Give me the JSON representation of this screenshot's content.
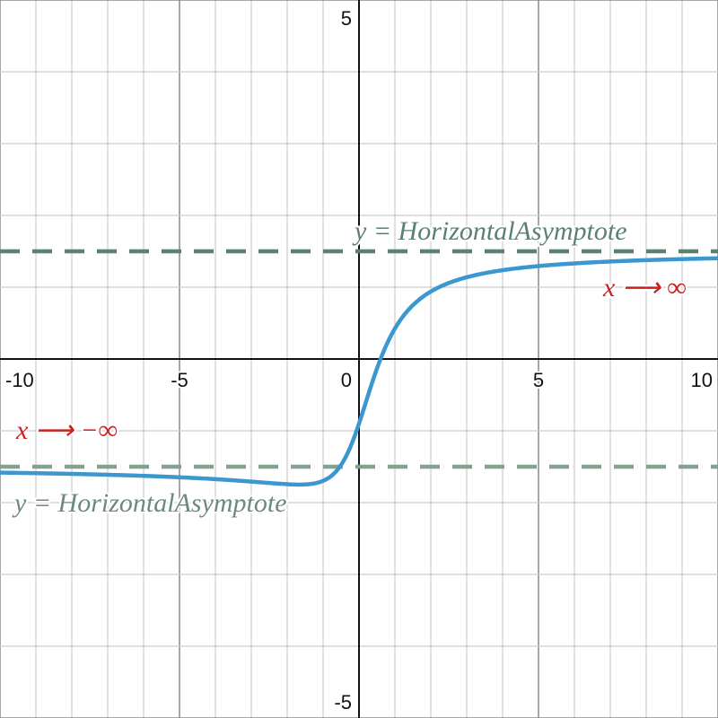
{
  "chart_data": {
    "type": "line",
    "xlim": [
      -10,
      10
    ],
    "ylim": [
      -5,
      5
    ],
    "grid": true,
    "x_tick_labels": [
      "-10",
      "-5",
      "0",
      "5",
      "10"
    ],
    "y_tick_labels": [
      "5",
      "-5"
    ],
    "curve": {
      "color": "#3a97d0",
      "samples": [
        {
          "x": -10,
          "y": -1.58
        },
        {
          "x": -5,
          "y": -1.65
        },
        {
          "x": -2,
          "y": -1.74
        },
        {
          "x": -1,
          "y": -1.7
        },
        {
          "x": 0,
          "y": -0.9
        },
        {
          "x": 1,
          "y": 0.42
        },
        {
          "x": 2,
          "y": 0.94
        },
        {
          "x": 5,
          "y": 1.29
        },
        {
          "x": 10,
          "y": 1.4
        }
      ]
    },
    "asymptotes": [
      {
        "y": 1.5,
        "color": "#5c8070",
        "label": "y = HorizontalAsymptote"
      },
      {
        "y": -1.5,
        "color": "#86a090",
        "label": "y = HorizontalAsymptote"
      }
    ],
    "annotations": [
      {
        "text": "x ⟶ ∞",
        "color": "#cc1f1f"
      },
      {
        "text": "x ⟶ −∞",
        "color": "#cc1f1f"
      }
    ]
  }
}
